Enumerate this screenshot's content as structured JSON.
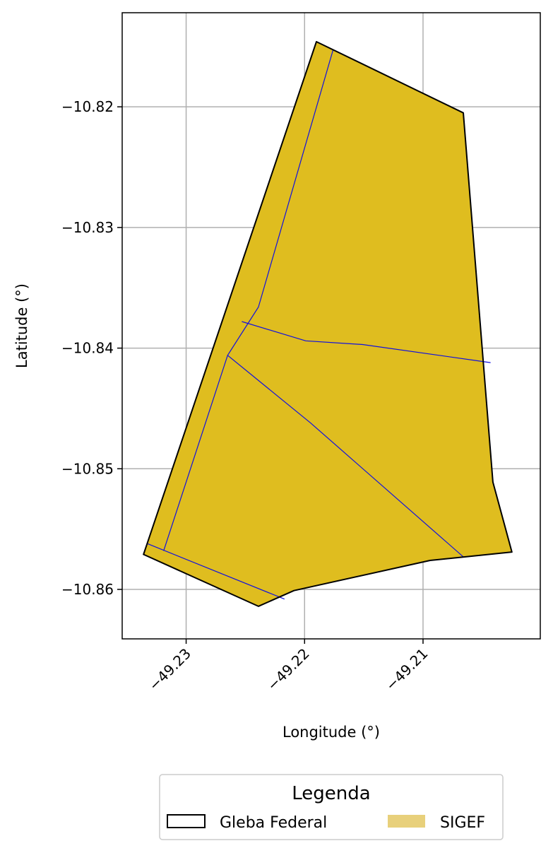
{
  "chart_data": {
    "type": "map",
    "xlabel": "Longitude (°)",
    "ylabel": "Latitude (°)",
    "xlim": [
      -49.2354,
      -49.2001
    ],
    "ylim": [
      -10.8641,
      -10.8122
    ],
    "grid": true,
    "x_ticks": [
      {
        "value": -49.23,
        "label": "−49.23"
      },
      {
        "value": -49.22,
        "label": "−49.22"
      },
      {
        "value": -49.21,
        "label": "−49.21"
      }
    ],
    "y_ticks": [
      {
        "value": -10.82,
        "label": "−10.82"
      },
      {
        "value": -10.83,
        "label": "−10.83"
      },
      {
        "value": -10.84,
        "label": "−10.84"
      },
      {
        "value": -10.85,
        "label": "−10.85"
      },
      {
        "value": -10.86,
        "label": "−10.86"
      }
    ],
    "gleba_federal": {
      "edge_color": "#000000",
      "polygon": [
        [
          -49.219,
          -10.8146
        ],
        [
          -49.2066,
          -10.8205
        ],
        [
          -49.2041,
          -10.8511
        ],
        [
          -49.2025,
          -10.8569
        ],
        [
          -49.2094,
          -10.8576
        ],
        [
          -49.2209,
          -10.8601
        ],
        [
          -49.2239,
          -10.8614
        ],
        [
          -49.2336,
          -10.8571
        ]
      ]
    },
    "sigef": {
      "fill_color": "#dfbd1f",
      "legend_color": "#e8d07b",
      "line_color": "#1010e0",
      "parcel_lines": [
        [
          [
            -49.2176,
            -10.8153
          ],
          [
            -49.2239,
            -10.8366
          ],
          [
            -49.2265,
            -10.8406
          ],
          [
            -49.2319,
            -10.8568
          ]
        ],
        [
          [
            -49.2253,
            -10.8378
          ],
          [
            -49.2199,
            -10.8394
          ],
          [
            -49.2151,
            -10.8397
          ],
          [
            -49.2043,
            -10.8412
          ]
        ],
        [
          [
            -49.2265,
            -10.8406
          ],
          [
            -49.2195,
            -10.8462
          ],
          [
            -49.2066,
            -10.8573
          ]
        ],
        [
          [
            -49.2333,
            -10.8562
          ],
          [
            -49.2217,
            -10.8608
          ]
        ]
      ]
    },
    "legend": {
      "title": "Legenda",
      "placement": "bottom-center",
      "entries": [
        {
          "label": "Gleba Federal",
          "style": "outline"
        },
        {
          "label": "SIGEF",
          "style": "fill"
        }
      ]
    }
  }
}
